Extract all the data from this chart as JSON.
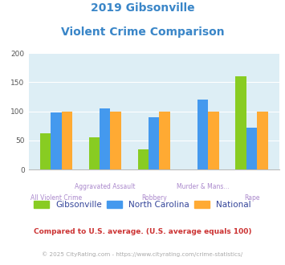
{
  "title_line1": "2019 Gibsonville",
  "title_line2": "Violent Crime Comparison",
  "title_color": "#3a86c8",
  "categories": [
    "All Violent Crime",
    "Aggravated Assault",
    "Robbery",
    "Murder & Mans...",
    "Rape"
  ],
  "gibsonville": [
    62,
    55,
    35,
    0,
    160
  ],
  "north_carolina": [
    98,
    105,
    90,
    120,
    72
  ],
  "national": [
    100,
    100,
    100,
    100,
    100
  ],
  "colors": {
    "gibsonville": "#88cc22",
    "north_carolina": "#4499ee",
    "national": "#ffaa33"
  },
  "ylim": [
    0,
    200
  ],
  "yticks": [
    0,
    50,
    100,
    150,
    200
  ],
  "background_color": "#ddeef5",
  "legend_labels": [
    "Gibsonville",
    "North Carolina",
    "National"
  ],
  "legend_color": "#334499",
  "footnote1": "Compared to U.S. average. (U.S. average equals 100)",
  "footnote2": "© 2025 CityRating.com - https://www.cityrating.com/crime-statistics/",
  "footnote1_color": "#cc3333",
  "footnote2_color": "#aaaaaa",
  "xtick_color": "#aa88cc",
  "bar_width": 0.22
}
